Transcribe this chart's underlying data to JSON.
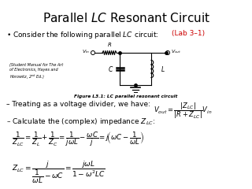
{
  "title": "Parallel $LC$ Resonant Circuit",
  "bullet1": "Consider the following parallel $LC$ circuit:",
  "lab_label": "(Lab 3–1)",
  "dash1": "– Treating as a voltage divider, we have:",
  "dash2": "– Calculate the (complex) impedance $Z_{LC}$:",
  "fig_caption": "Figure L3.1: LC parallel resonant circuit",
  "source_note": "(Student Manual for The Art\nof Electronics, Hayes and\nHorowitz, 2ⁿᵈ Ed.)",
  "bg_color": "#ffffff",
  "text_color": "#000000",
  "red_color": "#cc0000",
  "title_fontsize": 11,
  "body_fontsize": 6.5,
  "eq_fontsize": 7,
  "small_fontsize": 4.5,
  "circuit_note_fontsize": 3.5
}
